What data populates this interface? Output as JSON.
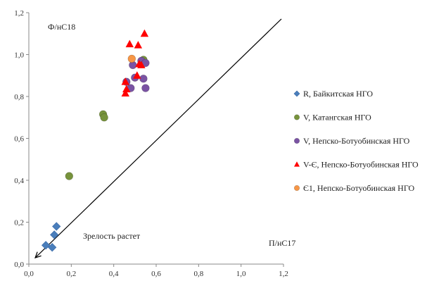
{
  "chart_data": {
    "type": "scatter",
    "xlim": [
      0,
      1.2
    ],
    "ylim": [
      0,
      1.2
    ],
    "x_ticks": [
      "0,0",
      "0,2",
      "0,4",
      "0,6",
      "0,8",
      "1,0",
      "1,2"
    ],
    "y_ticks": [
      "0,0",
      "0,2",
      "0,4",
      "0,6",
      "0,8",
      "1,0",
      "1,2"
    ],
    "grid": false,
    "legend_position": "right",
    "series": [
      {
        "name": "R, Байкитская НГО",
        "marker": "diamond",
        "color": "#4a7ebb",
        "points": [
          [
            0.13,
            0.18
          ],
          [
            0.12,
            0.14
          ],
          [
            0.08,
            0.09
          ],
          [
            0.11,
            0.08
          ]
        ]
      },
      {
        "name": "V, Катангская НГО",
        "marker": "circle",
        "color": "#77933c",
        "points": [
          [
            0.35,
            0.715
          ],
          [
            0.355,
            0.7
          ],
          [
            0.19,
            0.42
          ],
          [
            0.54,
            0.975
          ]
        ]
      },
      {
        "name": "V, Непско-Ботуобинская НГО",
        "marker": "circle",
        "color": "#7a53a3",
        "points": [
          [
            0.49,
            0.95
          ],
          [
            0.53,
            0.97
          ],
          [
            0.55,
            0.96
          ],
          [
            0.5,
            0.89
          ],
          [
            0.54,
            0.885
          ],
          [
            0.48,
            0.84
          ],
          [
            0.55,
            0.84
          ],
          [
            0.46,
            0.87
          ]
        ]
      },
      {
        "name": "V-Є, Непско-Ботуобинская НГО",
        "marker": "triangle",
        "color": "#ff0000",
        "points": [
          [
            0.545,
            1.1
          ],
          [
            0.475,
            1.05
          ],
          [
            0.515,
            1.045
          ],
          [
            0.52,
            0.955
          ],
          [
            0.53,
            0.95
          ],
          [
            0.51,
            0.9
          ],
          [
            0.455,
            0.87
          ],
          [
            0.46,
            0.835
          ],
          [
            0.455,
            0.815
          ]
        ]
      },
      {
        "name": "Є1, Непско-Ботуобинская НГО",
        "marker": "circle",
        "color": "#f79646",
        "points": [
          [
            0.485,
            0.98
          ]
        ]
      }
    ],
    "trend_line": {
      "from": [
        1.19,
        1.17
      ],
      "to": [
        0.03,
        0.03
      ],
      "arrow_at": "start-end",
      "color": "#000000"
    },
    "annotations": [
      {
        "id": "ylabel",
        "text": "Ф/нС18"
      },
      {
        "id": "xlabel",
        "text": "П/нС17"
      },
      {
        "id": "arrow_label",
        "text": "Зрелость растет"
      }
    ]
  }
}
